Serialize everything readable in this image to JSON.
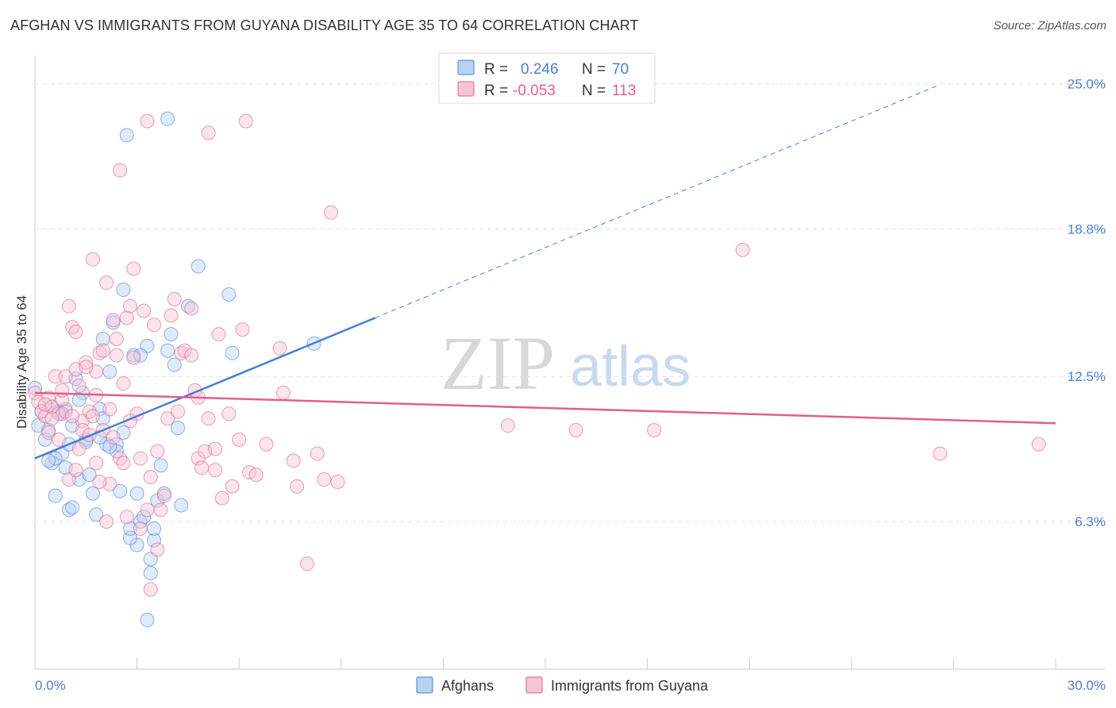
{
  "title": "AFGHAN VS IMMIGRANTS FROM GUYANA DISABILITY AGE 35 TO 64 CORRELATION CHART",
  "source": "Source: ZipAtlas.com",
  "watermark": {
    "zip": "ZIP",
    "atlas": "atlas"
  },
  "stats": [
    {
      "r_label": "R =",
      "r_value": "0.246",
      "n_label": "N =",
      "n_value": "70",
      "color": "#4a7fd4",
      "fill": "#b9d2f3"
    },
    {
      "r_label": "R =",
      "r_value": "-0.053",
      "n_label": "N =",
      "n_value": "113",
      "color": "#e05f8f",
      "fill": "#f7c3d5"
    }
  ],
  "chart_data": {
    "type": "scatter",
    "title": "AFGHAN VS IMMIGRANTS FROM GUYANA DISABILITY AGE 35 TO 64 CORRELATION CHART",
    "xlabel": "",
    "ylabel": "Disability Age 35 to 64",
    "xlim": [
      0,
      30
    ],
    "ylim": [
      0,
      26.2
    ],
    "x_tick_labels": [
      {
        "value": 0,
        "label": "0.0%"
      },
      {
        "value": 30,
        "label": "30.0%"
      }
    ],
    "y_tick_labels": [
      {
        "value": 25.0,
        "label": "25.0%"
      },
      {
        "value": 18.8,
        "label": "18.8%"
      },
      {
        "value": 12.5,
        "label": "12.5%"
      },
      {
        "value": 6.3,
        "label": "6.3%"
      }
    ],
    "legend": [
      "Afghans",
      "Immigrants from Guyana"
    ],
    "series": [
      {
        "name": "Afghans",
        "color": "#4a7fd4",
        "fill": "#b9d2f3",
        "trend": {
          "x0": 0.0,
          "y0": 9.0,
          "x1": 10.0,
          "y1": 15.0,
          "dashed_to_x": 26.5
        },
        "points": [
          [
            0.0,
            12.0
          ],
          [
            0.1,
            10.4
          ],
          [
            0.2,
            11.0
          ],
          [
            0.3,
            9.8
          ],
          [
            0.4,
            10.2
          ],
          [
            0.5,
            8.8
          ],
          [
            0.6,
            7.4
          ],
          [
            0.5,
            11.2
          ],
          [
            0.7,
            11.0
          ],
          [
            0.8,
            9.2
          ],
          [
            0.9,
            8.6
          ],
          [
            1.0,
            6.8
          ],
          [
            1.1,
            10.4
          ],
          [
            1.2,
            12.4
          ],
          [
            1.3,
            8.1
          ],
          [
            1.4,
            11.8
          ],
          [
            1.5,
            9.8
          ],
          [
            1.6,
            8.3
          ],
          [
            1.7,
            7.5
          ],
          [
            1.8,
            6.6
          ],
          [
            1.9,
            11.1
          ],
          [
            2.0,
            10.7
          ],
          [
            2.0,
            14.1
          ],
          [
            2.1,
            9.6
          ],
          [
            2.2,
            12.7
          ],
          [
            2.3,
            14.8
          ],
          [
            2.4,
            9.6
          ],
          [
            2.5,
            7.6
          ],
          [
            2.6,
            10.1
          ],
          [
            2.6,
            16.2
          ],
          [
            2.7,
            22.8
          ],
          [
            2.9,
            13.4
          ],
          [
            3.0,
            7.5
          ],
          [
            3.1,
            6.3
          ],
          [
            3.2,
            6.5
          ],
          [
            3.3,
            13.8
          ],
          [
            3.4,
            4.1
          ],
          [
            3.5,
            5.5
          ],
          [
            3.6,
            7.2
          ],
          [
            3.7,
            8.7
          ],
          [
            3.8,
            7.5
          ],
          [
            3.9,
            13.6
          ],
          [
            4.0,
            14.3
          ],
          [
            4.1,
            13.0
          ],
          [
            4.2,
            10.3
          ],
          [
            4.3,
            7.0
          ],
          [
            4.5,
            15.5
          ],
          [
            4.8,
            17.2
          ],
          [
            5.7,
            16.0
          ],
          [
            5.8,
            13.5
          ],
          [
            8.2,
            13.9
          ],
          [
            3.9,
            23.5
          ],
          [
            3.0,
            5.3
          ],
          [
            2.8,
            5.6
          ],
          [
            1.1,
            6.9
          ],
          [
            0.6,
            9.0
          ],
          [
            1.5,
            9.7
          ],
          [
            2.4,
            9.3
          ],
          [
            3.5,
            6.0
          ],
          [
            3.1,
            13.4
          ],
          [
            1.9,
            9.9
          ],
          [
            2.2,
            9.5
          ],
          [
            1.0,
            9.6
          ],
          [
            0.4,
            8.9
          ],
          [
            3.4,
            4.7
          ],
          [
            3.3,
            2.1
          ],
          [
            2.8,
            6.0
          ],
          [
            1.3,
            11.5
          ],
          [
            0.9,
            11.1
          ],
          [
            0.8,
            10.9
          ]
        ]
      },
      {
        "name": "Immigrants from Guyana",
        "color": "#e05f8f",
        "fill": "#f7c3d5",
        "trend": {
          "x0": 0.0,
          "y0": 11.8,
          "x1": 30.0,
          "y1": 10.5
        },
        "points": [
          [
            0.0,
            11.8
          ],
          [
            0.1,
            11.4
          ],
          [
            0.2,
            11.0
          ],
          [
            0.3,
            10.8
          ],
          [
            0.4,
            11.6
          ],
          [
            0.5,
            11.2
          ],
          [
            0.6,
            12.5
          ],
          [
            0.7,
            10.9
          ],
          [
            0.8,
            11.5
          ],
          [
            0.9,
            11.0
          ],
          [
            1.0,
            15.5
          ],
          [
            1.1,
            14.6
          ],
          [
            1.2,
            14.4
          ],
          [
            1.3,
            12.1
          ],
          [
            1.4,
            10.6
          ],
          [
            1.5,
            13.1
          ],
          [
            1.6,
            11.0
          ],
          [
            1.7,
            17.5
          ],
          [
            1.8,
            12.7
          ],
          [
            1.9,
            13.5
          ],
          [
            2.0,
            10.2
          ],
          [
            2.1,
            16.5
          ],
          [
            2.2,
            11.1
          ],
          [
            2.3,
            14.9
          ],
          [
            2.4,
            13.4
          ],
          [
            2.5,
            21.3
          ],
          [
            2.6,
            12.2
          ],
          [
            2.7,
            15.0
          ],
          [
            2.8,
            15.5
          ],
          [
            2.9,
            17.1
          ],
          [
            3.0,
            10.9
          ],
          [
            3.1,
            9.0
          ],
          [
            3.2,
            15.3
          ],
          [
            3.3,
            23.4
          ],
          [
            3.4,
            8.2
          ],
          [
            3.5,
            14.7
          ],
          [
            3.6,
            9.3
          ],
          [
            3.7,
            6.8
          ],
          [
            3.8,
            7.4
          ],
          [
            3.9,
            10.7
          ],
          [
            4.0,
            15.1
          ],
          [
            4.1,
            15.8
          ],
          [
            4.2,
            11.0
          ],
          [
            4.3,
            13.5
          ],
          [
            4.4,
            13.6
          ],
          [
            4.6,
            15.4
          ],
          [
            4.7,
            11.9
          ],
          [
            4.8,
            9.0
          ],
          [
            4.9,
            8.6
          ],
          [
            5.0,
            9.3
          ],
          [
            5.1,
            10.7
          ],
          [
            5.3,
            8.5
          ],
          [
            5.4,
            14.3
          ],
          [
            5.5,
            7.3
          ],
          [
            5.7,
            10.9
          ],
          [
            5.8,
            7.8
          ],
          [
            6.0,
            9.8
          ],
          [
            6.1,
            14.5
          ],
          [
            6.3,
            8.4
          ],
          [
            6.5,
            8.3
          ],
          [
            6.8,
            9.6
          ],
          [
            7.2,
            13.7
          ],
          [
            7.3,
            11.8
          ],
          [
            7.6,
            8.9
          ],
          [
            7.7,
            7.8
          ],
          [
            8.0,
            4.5
          ],
          [
            8.3,
            9.2
          ],
          [
            8.5,
            8.1
          ],
          [
            8.7,
            19.5
          ],
          [
            8.9,
            8.0
          ],
          [
            5.1,
            22.9
          ],
          [
            6.2,
            23.4
          ],
          [
            4.6,
            13.4
          ],
          [
            3.1,
            6.0
          ],
          [
            3.4,
            3.4
          ],
          [
            3.6,
            5.1
          ],
          [
            2.7,
            6.5
          ],
          [
            2.8,
            10.6
          ],
          [
            2.2,
            7.9
          ],
          [
            2.5,
            9.0
          ],
          [
            1.9,
            8.0
          ],
          [
            1.8,
            8.8
          ],
          [
            1.4,
            10.2
          ],
          [
            1.6,
            10.0
          ],
          [
            1.0,
            8.1
          ],
          [
            1.2,
            8.5
          ],
          [
            0.5,
            10.7
          ],
          [
            0.3,
            11.3
          ],
          [
            0.4,
            10.1
          ],
          [
            0.7,
            9.8
          ],
          [
            0.8,
            11.9
          ],
          [
            0.9,
            12.5
          ],
          [
            1.1,
            10.8
          ],
          [
            1.2,
            12.8
          ],
          [
            1.3,
            9.4
          ],
          [
            1.5,
            12.9
          ],
          [
            1.7,
            10.8
          ],
          [
            1.8,
            11.7
          ],
          [
            2.0,
            13.6
          ],
          [
            2.1,
            6.3
          ],
          [
            2.3,
            9.9
          ],
          [
            2.4,
            14.1
          ],
          [
            2.6,
            8.8
          ],
          [
            2.9,
            13.3
          ],
          [
            3.3,
            6.8
          ],
          [
            20.8,
            17.9
          ],
          [
            13.9,
            10.4
          ],
          [
            15.9,
            10.2
          ],
          [
            18.2,
            10.2
          ],
          [
            26.6,
            9.2
          ],
          [
            29.5,
            9.6
          ],
          [
            4.8,
            11.6
          ],
          [
            5.3,
            9.4
          ]
        ]
      }
    ]
  }
}
